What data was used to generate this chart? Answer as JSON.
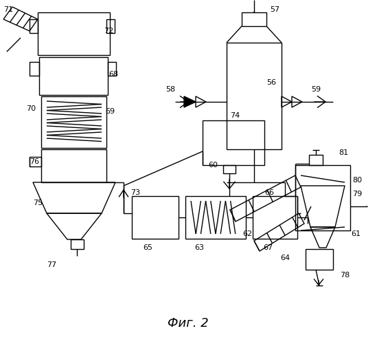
{
  "title": "Фиг. 2",
  "bg_color": "#ffffff",
  "line_color": "#000000",
  "label_color": "#000000",
  "lw": 1.0
}
